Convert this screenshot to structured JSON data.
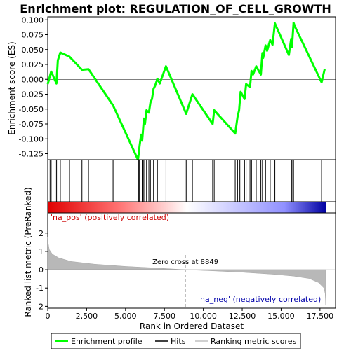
{
  "chart_data": {
    "type": "line",
    "title": "Enrichment plot: REGULATION_OF_CELL_GROWTH",
    "es_panel": {
      "ylabel": "Enrichment score (ES)",
      "ylim": [
        -0.135,
        0.105
      ],
      "yticks": [
        -0.125,
        -0.1,
        -0.075,
        -0.05,
        -0.025,
        0.0,
        0.025,
        0.05,
        0.075,
        0.1
      ],
      "ytick_labels": [
        "-0.125",
        "-0.100",
        "-0.075",
        "-0.050",
        "-0.025",
        "0.000",
        "0.025",
        "0.050",
        "0.075",
        "0.100"
      ],
      "series_name": "Enrichment profile",
      "line_color": "#00ff00",
      "x": [
        0,
        220,
        560,
        650,
        810,
        1400,
        2200,
        2620,
        4200,
        5800,
        5850,
        5900,
        6000,
        6070,
        6120,
        6180,
        6250,
        6350,
        6500,
        6600,
        6700,
        6800,
        6900,
        7050,
        7200,
        7600,
        8900,
        9300,
        10600,
        10700,
        12050,
        12200,
        12300,
        12350,
        12400,
        12650,
        12750,
        13000,
        13100,
        13200,
        13400,
        13700,
        13800,
        13850,
        14000,
        14100,
        14300,
        14450,
        14600,
        15500,
        15650,
        15700,
        15800,
        15900,
        17600,
        17800
      ],
      "y": [
        -0.008,
        0.013,
        -0.007,
        0.032,
        0.045,
        0.038,
        0.016,
        0.017,
        -0.044,
        -0.135,
        -0.125,
        -0.112,
        -0.093,
        -0.103,
        -0.087,
        -0.066,
        -0.075,
        -0.052,
        -0.056,
        -0.039,
        -0.033,
        -0.016,
        -0.011,
        0.001,
        -0.007,
        0.022,
        -0.058,
        -0.025,
        -0.075,
        -0.052,
        -0.091,
        -0.063,
        -0.052,
        -0.036,
        -0.021,
        -0.033,
        -0.008,
        -0.013,
        0.014,
        0.008,
        0.022,
        0.008,
        0.044,
        0.036,
        0.057,
        0.048,
        0.066,
        0.058,
        0.094,
        0.041,
        0.068,
        0.054,
        0.095,
        0.088,
        -0.005,
        0.017
      ]
    },
    "hits": [
      150,
      220,
      560,
      650,
      810,
      1400,
      2200,
      2620,
      4200,
      5800,
      5850,
      5900,
      6070,
      6120,
      6180,
      6350,
      6500,
      6600,
      6700,
      6800,
      7050,
      7600,
      8900,
      9300,
      10600,
      10700,
      12050,
      12200,
      12300,
      12350,
      12650,
      12750,
      13000,
      13100,
      13400,
      13700,
      13800,
      14000,
      14300,
      14600,
      15650,
      15700,
      15800,
      17600
    ],
    "metric_panel": {
      "ylabel": "Ranked list metric (PreRanked)",
      "ylim": [
        -2.1,
        3.1
      ],
      "yticks": [
        -2,
        -1,
        0,
        1,
        2
      ],
      "ytick_labels": [
        "-2",
        "-1",
        "0",
        "1",
        "2"
      ],
      "xlabel": "Rank in Ordered Dataset",
      "xlim": [
        0,
        18500
      ],
      "xticks": [
        0,
        2500,
        5000,
        7500,
        10000,
        12500,
        15000,
        17500
      ],
      "xtick_labels": [
        "0",
        "2,500",
        "5,000",
        "7,500",
        "10,000",
        "12,500",
        "15,000",
        "17,500"
      ],
      "curve": [
        [
          0,
          1.8
        ],
        [
          20,
          1.5
        ],
        [
          100,
          1.1
        ],
        [
          300,
          0.85
        ],
        [
          700,
          0.65
        ],
        [
          1500,
          0.45
        ],
        [
          3000,
          0.3
        ],
        [
          5000,
          0.18
        ],
        [
          7000,
          0.09
        ],
        [
          8849,
          0.0
        ],
        [
          10500,
          -0.06
        ],
        [
          12500,
          -0.14
        ],
        [
          14500,
          -0.25
        ],
        [
          15800,
          -0.35
        ],
        [
          16800,
          -0.48
        ],
        [
          17400,
          -0.7
        ],
        [
          17750,
          -1.0
        ],
        [
          17830,
          -1.3
        ],
        [
          17870,
          -1.95
        ]
      ],
      "zero_cross_rank": 8849,
      "zero_cross_label": "Zero cross at 8849",
      "pos_label": "'na_pos' (positively correlated)",
      "neg_label": "'na_neg' (negatively correlated)"
    },
    "n_genes": 17900,
    "legend": [
      {
        "label": "Enrichment profile",
        "color": "#00ff00"
      },
      {
        "label": "Hits",
        "color": "#000000"
      },
      {
        "label": "Ranking metric scores",
        "color": "#c0c0c0"
      }
    ],
    "pos_label_color": "#cc0000",
    "neg_label_color": "#0000aa",
    "gradient_colors": [
      "#e00000",
      "#ff8080",
      "#ffd0d0",
      "#ffffff",
      "#d8d8ff",
      "#8080ff",
      "#0000a0"
    ]
  }
}
